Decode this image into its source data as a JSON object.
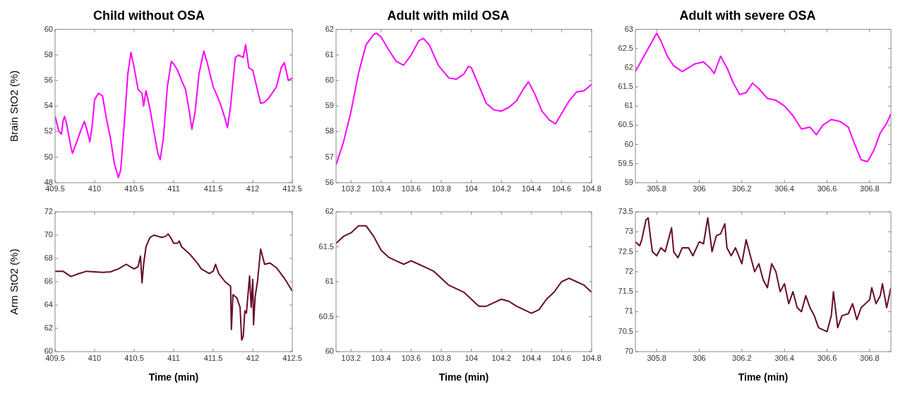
{
  "chart_data": [
    {
      "type": "line",
      "title": "Child without OSA",
      "ylabel": "Brain StO2 (%)",
      "color": "#ff00ff",
      "xlim": [
        409.5,
        412.5
      ],
      "ylim": [
        48,
        60
      ],
      "xticks": [
        409.5,
        410,
        410.5,
        411,
        411.5,
        412,
        412.5
      ],
      "yticks": [
        48,
        50,
        52,
        54,
        56,
        58,
        60
      ],
      "x": [
        409.5,
        409.55,
        409.58,
        409.6,
        409.62,
        409.65,
        409.7,
        409.72,
        409.78,
        409.82,
        409.87,
        409.9,
        409.94,
        409.97,
        410.0,
        410.05,
        410.1,
        410.15,
        410.2,
        410.25,
        410.3,
        410.33,
        410.38,
        410.42,
        410.46,
        410.5,
        410.55,
        410.6,
        410.62,
        410.65,
        410.7,
        410.75,
        410.8,
        410.83,
        410.87,
        410.92,
        410.97,
        411.0,
        411.05,
        411.1,
        411.15,
        411.2,
        411.23,
        411.27,
        411.32,
        411.38,
        411.42,
        411.5,
        411.55,
        411.6,
        411.65,
        411.68,
        411.72,
        411.78,
        411.82,
        411.88,
        411.91,
        411.95,
        412.0,
        412.05,
        412.1,
        412.15,
        412.2,
        412.3,
        412.36,
        412.4,
        412.45,
        412.5
      ],
      "values": [
        53.2,
        52.0,
        51.8,
        52.8,
        53.2,
        52.5,
        50.8,
        50.3,
        51.3,
        52.0,
        52.8,
        52.2,
        51.2,
        52.5,
        54.5,
        55.0,
        54.8,
        53.0,
        51.5,
        49.5,
        48.4,
        49.0,
        53.0,
        56.5,
        58.2,
        57.0,
        55.3,
        55.0,
        54.0,
        55.2,
        53.8,
        52.0,
        50.3,
        49.8,
        51.5,
        55.5,
        57.5,
        57.3,
        56.8,
        56.0,
        55.3,
        53.5,
        52.2,
        53.5,
        56.5,
        58.3,
        57.5,
        55.5,
        54.8,
        54.0,
        53.0,
        52.3,
        54.0,
        57.8,
        58.0,
        57.8,
        58.8,
        57.0,
        56.8,
        55.5,
        54.2,
        54.3,
        54.6,
        55.5,
        57.0,
        57.4,
        56.0,
        56.2
      ]
    },
    {
      "type": "line",
      "title": "Adult with mild OSA",
      "color": "#ff00ff",
      "xlim": [
        103.1,
        104.8
      ],
      "ylim": [
        56,
        62
      ],
      "xticks": [
        103.2,
        103.4,
        103.6,
        103.8,
        104,
        104.2,
        104.4,
        104.6,
        104.8
      ],
      "yticks": [
        56,
        57,
        58,
        59,
        60,
        61,
        62
      ],
      "x": [
        103.1,
        103.15,
        103.2,
        103.25,
        103.3,
        103.35,
        103.37,
        103.4,
        103.45,
        103.5,
        103.55,
        103.6,
        103.65,
        103.68,
        103.72,
        103.78,
        103.85,
        103.9,
        103.95,
        103.98,
        104.0,
        104.05,
        104.1,
        104.15,
        104.2,
        104.25,
        104.3,
        104.35,
        104.38,
        104.42,
        104.47,
        104.52,
        104.56,
        104.6,
        104.65,
        104.7,
        104.75,
        104.8
      ],
      "values": [
        56.7,
        57.6,
        58.8,
        60.3,
        61.4,
        61.8,
        61.85,
        61.7,
        61.2,
        60.75,
        60.6,
        61.0,
        61.55,
        61.65,
        61.4,
        60.6,
        60.1,
        60.05,
        60.25,
        60.55,
        60.5,
        59.8,
        59.1,
        58.85,
        58.8,
        58.95,
        59.2,
        59.7,
        59.95,
        59.5,
        58.8,
        58.45,
        58.3,
        58.7,
        59.2,
        59.55,
        59.6,
        59.85
      ]
    },
    {
      "type": "line",
      "title": "Adult with severe OSA",
      "color": "#ff00ff",
      "xlim": [
        305.7,
        306.9
      ],
      "ylim": [
        59,
        63
      ],
      "xticks": [
        305.8,
        306,
        306.2,
        306.4,
        306.6,
        306.8
      ],
      "yticks": [
        59,
        59.5,
        60,
        60.5,
        61,
        61.5,
        62,
        62.5,
        63
      ],
      "x": [
        305.7,
        305.72,
        305.75,
        305.78,
        305.8,
        305.82,
        305.85,
        305.88,
        305.92,
        305.95,
        305.98,
        306.02,
        306.05,
        306.07,
        306.1,
        306.13,
        306.16,
        306.19,
        306.22,
        306.25,
        306.28,
        306.32,
        306.36,
        306.4,
        306.44,
        306.48,
        306.52,
        306.55,
        306.58,
        306.62,
        306.66,
        306.7,
        306.73,
        306.76,
        306.79,
        306.82,
        306.85,
        306.88,
        306.9
      ],
      "values": [
        61.9,
        62.1,
        62.4,
        62.7,
        62.9,
        62.7,
        62.3,
        62.05,
        61.9,
        62.0,
        62.1,
        62.15,
        62.0,
        61.85,
        62.3,
        62.0,
        61.6,
        61.3,
        61.35,
        61.6,
        61.45,
        61.2,
        61.15,
        61.0,
        60.75,
        60.4,
        60.45,
        60.25,
        60.5,
        60.65,
        60.6,
        60.45,
        60.0,
        59.6,
        59.55,
        59.85,
        60.3,
        60.55,
        60.8
      ]
    },
    {
      "type": "line",
      "xlabel": "Time (min)",
      "ylabel": "Arm StO2 (%)",
      "color": "#660a2e",
      "xlim": [
        409.5,
        412.5
      ],
      "ylim": [
        60,
        72
      ],
      "xticks": [
        409.5,
        410,
        410.5,
        411,
        411.5,
        412,
        412.5
      ],
      "yticks": [
        60,
        62,
        64,
        66,
        68,
        70,
        72
      ],
      "x": [
        409.5,
        409.6,
        409.7,
        409.8,
        409.9,
        410.0,
        410.1,
        410.2,
        410.3,
        410.4,
        410.45,
        410.5,
        410.55,
        410.58,
        410.6,
        410.62,
        410.65,
        410.7,
        410.75,
        410.8,
        410.85,
        410.9,
        410.93,
        410.97,
        411.0,
        411.05,
        411.07,
        411.1,
        411.2,
        411.25,
        411.3,
        411.35,
        411.45,
        411.5,
        411.53,
        411.57,
        411.65,
        411.72,
        411.73,
        411.75,
        411.8,
        411.84,
        411.86,
        411.88,
        411.9,
        411.92,
        411.96,
        411.98,
        412.0,
        412.01,
        412.03,
        412.06,
        412.1,
        412.15,
        412.22,
        412.3,
        412.4,
        412.5
      ],
      "values": [
        66.9,
        66.9,
        66.45,
        66.7,
        66.9,
        66.85,
        66.8,
        66.85,
        67.1,
        67.5,
        67.3,
        67.1,
        67.3,
        68.2,
        65.9,
        67.5,
        69.0,
        69.8,
        70.0,
        69.9,
        69.8,
        69.9,
        70.1,
        69.7,
        69.3,
        69.3,
        69.5,
        69.0,
        68.4,
        68.0,
        67.6,
        67.1,
        66.7,
        66.9,
        67.5,
        66.7,
        66.0,
        65.6,
        61.9,
        64.9,
        64.6,
        63.8,
        61.0,
        61.3,
        63.5,
        63.3,
        66.5,
        63.8,
        66.2,
        62.3,
        64.7,
        66.0,
        68.8,
        67.5,
        67.6,
        67.2,
        66.3,
        65.2
      ]
    },
    {
      "type": "line",
      "xlabel": "Time (min)",
      "color": "#660a2e",
      "xlim": [
        103.1,
        104.8
      ],
      "ylim": [
        60,
        62
      ],
      "xticks": [
        103.2,
        103.4,
        103.6,
        103.8,
        104,
        104.2,
        104.4,
        104.6,
        104.8
      ],
      "yticks": [
        60,
        60.5,
        61,
        61.5,
        62
      ],
      "x": [
        103.1,
        103.15,
        103.2,
        103.25,
        103.3,
        103.35,
        103.4,
        103.45,
        103.5,
        103.55,
        103.6,
        103.65,
        103.7,
        103.75,
        103.8,
        103.85,
        103.9,
        103.95,
        104.0,
        104.05,
        104.1,
        104.15,
        104.2,
        104.25,
        104.3,
        104.35,
        104.4,
        104.45,
        104.5,
        104.55,
        104.6,
        104.65,
        104.7,
        104.75,
        104.8
      ],
      "values": [
        61.55,
        61.65,
        61.7,
        61.8,
        61.8,
        61.65,
        61.45,
        61.35,
        61.3,
        61.25,
        61.3,
        61.25,
        61.2,
        61.15,
        61.05,
        60.95,
        60.9,
        60.85,
        60.75,
        60.65,
        60.65,
        60.7,
        60.75,
        60.72,
        60.65,
        60.6,
        60.55,
        60.6,
        60.75,
        60.85,
        61.0,
        61.05,
        61.0,
        60.95,
        60.85
      ]
    },
    {
      "type": "line",
      "xlabel": "Time (min)",
      "color": "#660a2e",
      "xlim": [
        305.7,
        306.9
      ],
      "ylim": [
        70,
        73.5
      ],
      "xticks": [
        305.8,
        306,
        306.2,
        306.4,
        306.6,
        306.8
      ],
      "yticks": [
        70,
        70.5,
        71,
        71.5,
        72,
        72.5,
        73,
        73.5
      ],
      "x": [
        305.7,
        305.72,
        305.73,
        305.75,
        305.76,
        305.77,
        305.78,
        305.8,
        305.82,
        305.84,
        305.86,
        305.87,
        305.88,
        305.9,
        305.92,
        305.95,
        305.97,
        306.0,
        306.02,
        306.04,
        306.06,
        306.08,
        306.1,
        306.12,
        306.13,
        306.15,
        306.17,
        306.2,
        306.22,
        306.23,
        306.26,
        306.28,
        306.3,
        306.32,
        306.34,
        306.36,
        306.38,
        306.4,
        306.42,
        306.44,
        306.46,
        306.48,
        306.5,
        306.52,
        306.54,
        306.56,
        306.58,
        306.6,
        306.62,
        306.63,
        306.65,
        306.67,
        306.7,
        306.72,
        306.74,
        306.76,
        306.78,
        306.8,
        306.81,
        306.83,
        306.85,
        306.86,
        306.88,
        306.9
      ],
      "values": [
        72.75,
        72.65,
        72.8,
        73.3,
        73.35,
        72.9,
        72.5,
        72.4,
        72.6,
        72.5,
        72.9,
        73.1,
        72.5,
        72.35,
        72.6,
        72.6,
        72.4,
        72.75,
        72.7,
        73.35,
        72.5,
        72.9,
        72.95,
        73.2,
        72.6,
        72.4,
        72.6,
        72.2,
        72.8,
        72.6,
        72.0,
        72.2,
        71.8,
        71.6,
        72.2,
        72.0,
        71.5,
        71.7,
        71.2,
        71.5,
        71.1,
        71.0,
        71.4,
        71.1,
        70.9,
        70.6,
        70.55,
        70.5,
        70.9,
        71.5,
        70.6,
        70.9,
        70.95,
        71.2,
        70.8,
        71.1,
        71.2,
        71.3,
        71.6,
        71.2,
        71.4,
        71.7,
        71.1,
        71.6
      ]
    }
  ]
}
